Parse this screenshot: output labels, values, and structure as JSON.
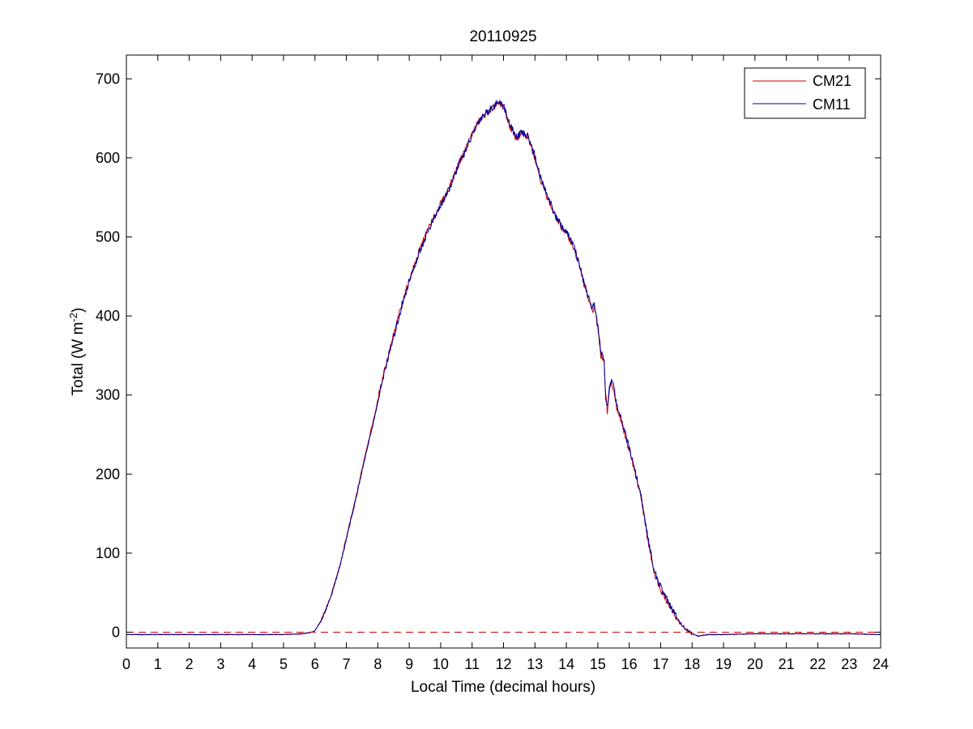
{
  "chart_data": {
    "type": "line",
    "title": "20110925",
    "xlabel": "Local Time (decimal hours)",
    "ylabel": {
      "base": "Total (W m",
      "superscript": "-2",
      "suffix": ")"
    },
    "xlim": [
      0,
      24
    ],
    "ylim": [
      -20,
      730
    ],
    "xticks": [
      0,
      1,
      2,
      3,
      4,
      5,
      6,
      7,
      8,
      9,
      10,
      11,
      12,
      13,
      14,
      15,
      16,
      17,
      18,
      19,
      20,
      21,
      22,
      23,
      24
    ],
    "yticks": [
      0,
      100,
      200,
      300,
      400,
      500,
      600,
      700
    ],
    "grid": false,
    "legend": {
      "placement": "top-right"
    },
    "reference_line": {
      "y": 0,
      "style": "dashed",
      "color": "#cc0000"
    },
    "series": [
      {
        "name": "CM21",
        "color": "#cc0000",
        "x": [
          0,
          1,
          2,
          3,
          4,
          5,
          5.6,
          5.9,
          6.0,
          6.2,
          6.5,
          6.8,
          7.0,
          7.3,
          7.6,
          7.9,
          8.2,
          8.5,
          8.8,
          9.0,
          9.3,
          9.6,
          9.8,
          10.0,
          10.2,
          10.4,
          10.6,
          10.8,
          11.0,
          11.2,
          11.4,
          11.6,
          11.8,
          12.0,
          12.2,
          12.4,
          12.6,
          12.8,
          13.0,
          13.2,
          13.4,
          13.6,
          13.8,
          14.0,
          14.2,
          14.4,
          14.6,
          14.8,
          14.9,
          15.0,
          15.1,
          15.2,
          15.25,
          15.3,
          15.4,
          15.5,
          15.6,
          15.8,
          16.0,
          16.2,
          16.4,
          16.6,
          16.7,
          16.8,
          17.0,
          17.2,
          17.4,
          17.6,
          17.8,
          18.0,
          18.2,
          18.5,
          19,
          20,
          21,
          22,
          23,
          24
        ],
        "y": [
          -3,
          -3,
          -3,
          -3,
          -3,
          -3,
          -2,
          0,
          2,
          15,
          45,
          85,
          120,
          170,
          225,
          275,
          330,
          375,
          420,
          445,
          480,
          510,
          525,
          542,
          555,
          575,
          595,
          612,
          630,
          645,
          655,
          660,
          668,
          665,
          640,
          625,
          630,
          625,
          600,
          570,
          550,
          530,
          515,
          505,
          490,
          465,
          435,
          408,
          410,
          385,
          350,
          345,
          300,
          280,
          315,
          310,
          285,
          260,
          230,
          200,
          165,
          115,
          95,
          75,
          55,
          40,
          25,
          12,
          3,
          -2,
          -5,
          -3,
          -3,
          -2,
          -2,
          -2,
          -2,
          -3
        ]
      },
      {
        "name": "CM11",
        "color": "#00009f",
        "x": [
          0,
          1,
          2,
          3,
          4,
          5,
          5.6,
          5.9,
          6.0,
          6.2,
          6.5,
          6.8,
          7.0,
          7.3,
          7.6,
          7.9,
          8.2,
          8.5,
          8.8,
          9.0,
          9.3,
          9.6,
          9.8,
          10.0,
          10.2,
          10.4,
          10.6,
          10.8,
          11.0,
          11.2,
          11.4,
          11.6,
          11.8,
          12.0,
          12.2,
          12.4,
          12.6,
          12.8,
          13.0,
          13.2,
          13.4,
          13.6,
          13.8,
          14.0,
          14.2,
          14.4,
          14.6,
          14.8,
          14.9,
          15.0,
          15.1,
          15.2,
          15.25,
          15.3,
          15.4,
          15.5,
          15.6,
          15.8,
          16.0,
          16.2,
          16.4,
          16.6,
          16.7,
          16.8,
          17.0,
          17.2,
          17.4,
          17.6,
          17.8,
          18.0,
          18.2,
          18.5,
          19,
          20,
          21,
          22,
          23,
          24
        ],
        "y": [
          -3,
          -3,
          -3,
          -3,
          -3,
          -3,
          -2,
          0,
          2,
          14,
          44,
          84,
          118,
          168,
          222,
          272,
          328,
          372,
          418,
          444,
          478,
          508,
          524,
          540,
          554,
          573,
          594,
          610,
          628,
          646,
          656,
          662,
          670,
          667,
          642,
          626,
          632,
          627,
          602,
          572,
          552,
          532,
          516,
          506,
          492,
          467,
          437,
          412,
          413,
          387,
          352,
          348,
          296,
          285,
          318,
          312,
          287,
          262,
          232,
          202,
          167,
          117,
          98,
          77,
          57,
          41,
          26,
          13,
          4,
          -2,
          -5,
          -3,
          -3,
          -2,
          -2,
          -2,
          -2,
          -3
        ]
      }
    ]
  }
}
